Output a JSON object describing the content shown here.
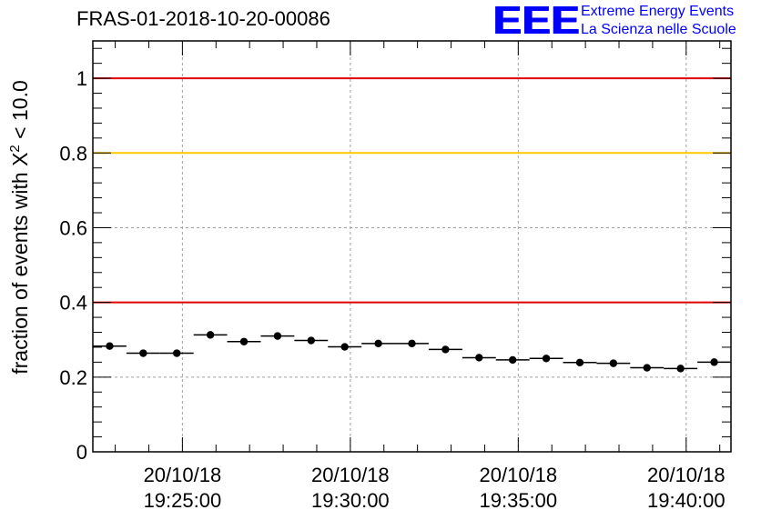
{
  "title": "FRAS-01-2018-10-20-00086",
  "logo": {
    "mark": "EEE",
    "line1": "Extreme Energy Events",
    "line2": "La Scienza nelle Scuole"
  },
  "colors": {
    "red_line": "#e00000",
    "yellow_line": "#ffc800",
    "grid": "#a0a0a0",
    "points": "#000000"
  },
  "chart_data": {
    "type": "scatter",
    "title": "FRAS-01-2018-10-20-00086",
    "ylabel": "fraction of events with X² < 10.0",
    "ylabel_prefix": "fraction of events with X",
    "ylabel_sup": "2",
    "ylabel_suffix": " < 10.0",
    "xlabel": "",
    "x_unit": "time (HH:MM:SS), date 20/10/18",
    "xlim": [
      "19:22:20",
      "19:41:20"
    ],
    "ylim": [
      0,
      1.1
    ],
    "y_ticks": [
      0,
      0.2,
      0.4,
      0.6,
      0.8,
      1
    ],
    "y_tick_labels": [
      "0",
      "0.2",
      "0.4",
      "0.6",
      "0.8",
      "1"
    ],
    "x_ticks": [
      {
        "time": "19:25:00",
        "date": "20/10/18",
        "label": "19:25:00"
      },
      {
        "time": "19:30:00",
        "date": "20/10/18",
        "label": "19:30:00"
      },
      {
        "time": "19:35:00",
        "date": "20/10/18",
        "label": "19:35:00"
      },
      {
        "time": "19:40:00",
        "date": "20/10/18",
        "label": "19:40:00"
      }
    ],
    "grid": true,
    "reference_lines": [
      {
        "y": 1.0,
        "color": "#e00000"
      },
      {
        "y": 0.8,
        "color": "#ffc800"
      },
      {
        "y": 0.4,
        "color": "#e00000"
      }
    ],
    "series": [
      {
        "points": [
          {
            "start": "19:22:20",
            "end": "19:23:20",
            "y": 0.283
          },
          {
            "start": "19:23:20",
            "end": "19:24:20",
            "y": 0.264
          },
          {
            "start": "19:24:20",
            "end": "19:25:20",
            "y": 0.264
          },
          {
            "start": "19:25:20",
            "end": "19:26:20",
            "y": 0.313
          },
          {
            "start": "19:26:20",
            "end": "19:27:20",
            "y": 0.295
          },
          {
            "start": "19:27:20",
            "end": "19:28:20",
            "y": 0.31
          },
          {
            "start": "19:28:20",
            "end": "19:29:20",
            "y": 0.298
          },
          {
            "start": "19:29:20",
            "end": "19:30:20",
            "y": 0.281
          },
          {
            "start": "19:30:20",
            "end": "19:31:20",
            "y": 0.29
          },
          {
            "start": "19:31:20",
            "end": "19:32:20",
            "y": 0.29
          },
          {
            "start": "19:32:20",
            "end": "19:33:20",
            "y": 0.274
          },
          {
            "start": "19:33:20",
            "end": "19:34:20",
            "y": 0.252
          },
          {
            "start": "19:34:20",
            "end": "19:35:20",
            "y": 0.246
          },
          {
            "start": "19:35:20",
            "end": "19:36:20",
            "y": 0.25
          },
          {
            "start": "19:36:20",
            "end": "19:37:20",
            "y": 0.239
          },
          {
            "start": "19:37:20",
            "end": "19:38:20",
            "y": 0.237
          },
          {
            "start": "19:38:20",
            "end": "19:39:20",
            "y": 0.225
          },
          {
            "start": "19:39:20",
            "end": "19:40:20",
            "y": 0.223
          },
          {
            "start": "19:40:20",
            "end": "19:41:20",
            "y": 0.24
          }
        ]
      }
    ]
  }
}
